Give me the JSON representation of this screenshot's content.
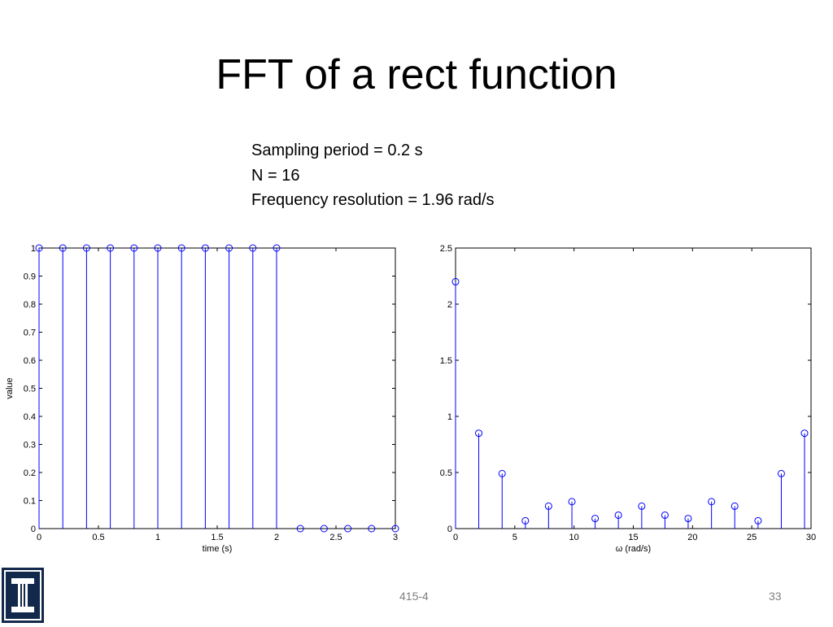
{
  "slide": {
    "title": "FFT of a rect function",
    "info_lines": [
      "Sampling period = 0.2 s",
      "N = 16",
      "Frequency resolution = 1.96 rad/s"
    ],
    "footer_center": "415-4",
    "page_number": "33"
  },
  "colors": {
    "stem": "#0000ff",
    "axis": "#000000",
    "logo_bg": "#13294b"
  },
  "chart_data": [
    {
      "type": "stem",
      "x": [
        0,
        0.2,
        0.4,
        0.6,
        0.8,
        1.0,
        1.2,
        1.4,
        1.6,
        1.8,
        2.0,
        2.2,
        2.4,
        2.6,
        2.8,
        3.0
      ],
      "values": [
        1,
        1,
        1,
        1,
        1,
        1,
        1,
        1,
        1,
        1,
        1,
        0,
        0,
        0,
        0,
        0
      ],
      "xlim": [
        0,
        3
      ],
      "ylim": [
        0,
        1
      ],
      "xticks": [
        0,
        0.5,
        1,
        1.5,
        2,
        2.5,
        3
      ],
      "xtick_labels": [
        "0",
        "0.5",
        "1",
        "1.5",
        "2",
        "2.5",
        "3"
      ],
      "yticks": [
        0,
        0.1,
        0.2,
        0.3,
        0.4,
        0.5,
        0.6,
        0.7,
        0.8,
        0.9,
        1
      ],
      "ytick_labels": [
        "0",
        "0.1",
        "0.2",
        "0.3",
        "0.4",
        "0.5",
        "0.6",
        "0.7",
        "0.8",
        "0.9",
        "1"
      ],
      "xlabel": "time (s)",
      "ylabel": "value",
      "grid": false
    },
    {
      "type": "stem",
      "x": [
        0,
        1.96,
        3.93,
        5.89,
        7.85,
        9.82,
        11.78,
        13.74,
        15.71,
        17.67,
        19.63,
        21.6,
        23.56,
        25.53,
        27.49,
        29.45
      ],
      "values": [
        2.2,
        0.85,
        0.49,
        0.07,
        0.2,
        0.24,
        0.09,
        0.12,
        0.2,
        0.12,
        0.09,
        0.24,
        0.2,
        0.07,
        0.49,
        0.85
      ],
      "xlim": [
        0,
        30
      ],
      "ylim": [
        0,
        2.5
      ],
      "xticks": [
        0,
        5,
        10,
        15,
        20,
        25,
        30
      ],
      "xtick_labels": [
        "0",
        "5",
        "10",
        "15",
        "20",
        "25",
        "30"
      ],
      "yticks": [
        0,
        0.5,
        1,
        1.5,
        2,
        2.5
      ],
      "ytick_labels": [
        "0",
        "0.5",
        "1",
        "1.5",
        "2",
        "2.5"
      ],
      "xlabel": "ω (rad/s)",
      "ylabel": "",
      "grid": false
    }
  ]
}
